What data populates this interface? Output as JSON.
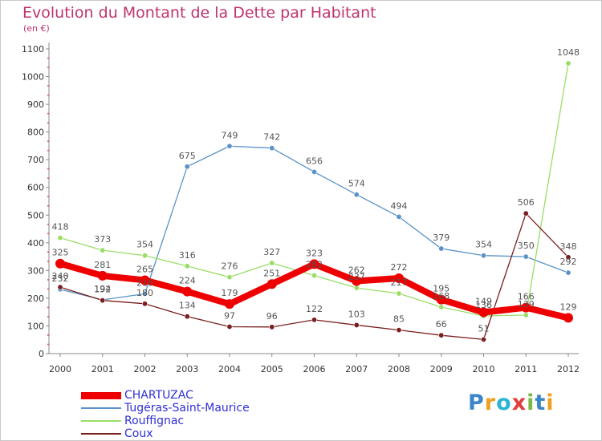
{
  "title": "Evolution du Montant de la Dette par Habitant",
  "subtitle": "(en €)",
  "logo": "Proxiti",
  "chart_data": {
    "type": "line",
    "x": [
      "2000",
      "2001",
      "2002",
      "2003",
      "2004",
      "2005",
      "2006",
      "2007",
      "2008",
      "2009",
      "2010",
      "2011",
      "2012"
    ],
    "ylim": [
      0,
      1100
    ],
    "yticks": [
      "0",
      "100",
      "200",
      "300",
      "400",
      "500",
      "600",
      "700",
      "800",
      "900",
      "1000",
      "1100"
    ],
    "grid": false,
    "legend_position": "bottom-left",
    "series": [
      {
        "name": "CHARTUZAC",
        "color": "#ee0000",
        "values": [
          325,
          281,
          265,
          224,
          179,
          251,
          323,
          262,
          272,
          195,
          149,
          166,
          129
        ]
      },
      {
        "name": "Tugéras-Saint-Maurice",
        "color": "#5b92c8",
        "values": [
          232,
          194,
          216,
          675,
          749,
          742,
          656,
          574,
          494,
          379,
          354,
          350,
          292
        ]
      },
      {
        "name": "Rouffignac",
        "color": "#99dd66",
        "values": [
          418,
          373,
          354,
          316,
          276,
          327,
          282,
          237,
          217,
          168,
          136,
          139,
          1048
        ]
      },
      {
        "name": "Coux",
        "color": "#7a1e1e",
        "values": [
          240,
          192,
          180,
          134,
          97,
          96,
          122,
          103,
          85,
          66,
          51,
          506,
          348
        ]
      }
    ],
    "data_labels": [
      [
        "325",
        "281",
        "265",
        "224",
        "179",
        "251",
        "323",
        "262",
        "272",
        "195",
        "149",
        "166",
        "129"
      ],
      [
        "232",
        "194",
        "216",
        "675",
        "749",
        "742",
        "656",
        "574",
        "494",
        "379",
        "354",
        "350",
        "292"
      ],
      [
        "418",
        "373",
        "354",
        "316",
        "276",
        "327",
        "282",
        "237",
        "217",
        "168",
        "136",
        "139",
        "1048"
      ],
      [
        "240",
        "192",
        "180",
        "134",
        "97",
        "96",
        "122",
        "103",
        "85",
        "66",
        "51",
        "506",
        "348"
      ]
    ]
  }
}
